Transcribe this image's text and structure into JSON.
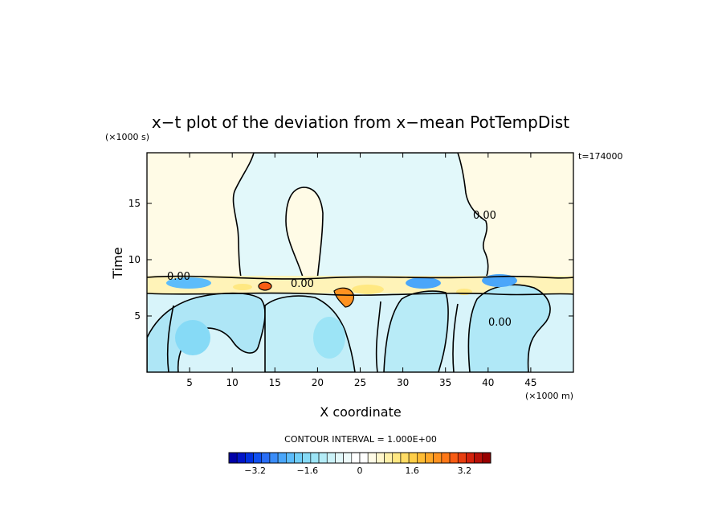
{
  "chart_data": {
    "type": "heatmap",
    "title": "x−t plot of the deviation from x−mean PotTempDist",
    "xlabel": "X coordinate",
    "ylabel": "Time",
    "x_unit": "(×1000 m)",
    "y_unit": "(×1000 s)",
    "time_stamp": "t=174000",
    "xlim": [
      0,
      50
    ],
    "ylim": [
      0,
      19.5
    ],
    "x_ticks": [
      5,
      10,
      15,
      20,
      25,
      30,
      35,
      40,
      45
    ],
    "x_tick_labels": [
      "5",
      "10",
      "15",
      "20",
      "25",
      "30",
      "35",
      "40",
      "45"
    ],
    "y_ticks": [
      5,
      10,
      15
    ],
    "y_tick_labels": [
      "5",
      "10",
      "15"
    ],
    "contour_label": "0.00",
    "contour_interval_text": "CONTOUR INTERVAL = 1.000E+00",
    "colorbar": {
      "min": -4.0,
      "max": 4.0,
      "tick_values": [
        -3.2,
        -1.6,
        0,
        1.6,
        3.2
      ],
      "tick_labels": [
        "−3.2",
        "−1.6",
        "0",
        "1.6",
        "3.2"
      ],
      "colors": [
        "#0000a8",
        "#0014c8",
        "#0030e0",
        "#1050f0",
        "#2a6ef6",
        "#3a8cf8",
        "#4aa6fa",
        "#5cbcfb",
        "#70cef8",
        "#86daf6",
        "#9ce4f6",
        "#b4ecf7",
        "#cbf2f8",
        "#e2f8fa",
        "#eefbfb",
        "#ffffff",
        "#ffffff",
        "#fffbe6",
        "#fff6cc",
        "#fff0a8",
        "#ffe882",
        "#ffdc64",
        "#ffce48",
        "#ffbc34",
        "#ffa828",
        "#ff9220",
        "#ff7818",
        "#f85c14",
        "#e83e10",
        "#d4220c",
        "#b81008",
        "#980000"
      ]
    }
  }
}
